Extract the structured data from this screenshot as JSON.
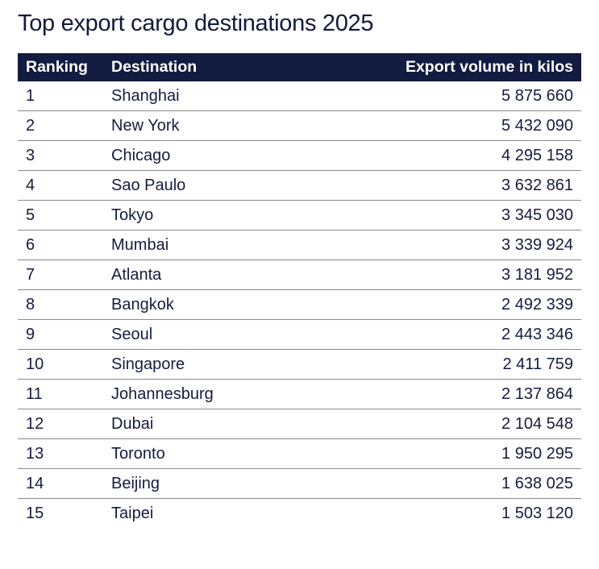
{
  "title": "Top export cargo destinations 2025",
  "headers": {
    "ranking": "Ranking",
    "destination": "Destination",
    "volume": "Export volume in kilos"
  },
  "rows": [
    {
      "rank": "1",
      "destination": "Shanghai",
      "volume": "5 875 660"
    },
    {
      "rank": "2",
      "destination": "New York",
      "volume": "5 432 090"
    },
    {
      "rank": "3",
      "destination": "Chicago",
      "volume": "4 295 158"
    },
    {
      "rank": "4",
      "destination": "Sao Paulo",
      "volume": "3 632 861"
    },
    {
      "rank": "5",
      "destination": "Tokyo",
      "volume": "3 345 030"
    },
    {
      "rank": "6",
      "destination": "Mumbai",
      "volume": "3 339 924"
    },
    {
      "rank": "7",
      "destination": "Atlanta",
      "volume": "3 181 952"
    },
    {
      "rank": "8",
      "destination": "Bangkok",
      "volume": "2 492 339"
    },
    {
      "rank": "9",
      "destination": "Seoul",
      "volume": "2 443 346"
    },
    {
      "rank": "10",
      "destination": "Singapore",
      "volume": "2 411 759"
    },
    {
      "rank": "11",
      "destination": "Johannesburg",
      "volume": "2 137 864"
    },
    {
      "rank": "12",
      "destination": "Dubai",
      "volume": "2 104 548"
    },
    {
      "rank": "13",
      "destination": "Toronto",
      "volume": "1 950 295"
    },
    {
      "rank": "14",
      "destination": "Beijing",
      "volume": "1 638 025"
    },
    {
      "rank": "15",
      "destination": "Taipei",
      "volume": "1 503 120"
    }
  ]
}
